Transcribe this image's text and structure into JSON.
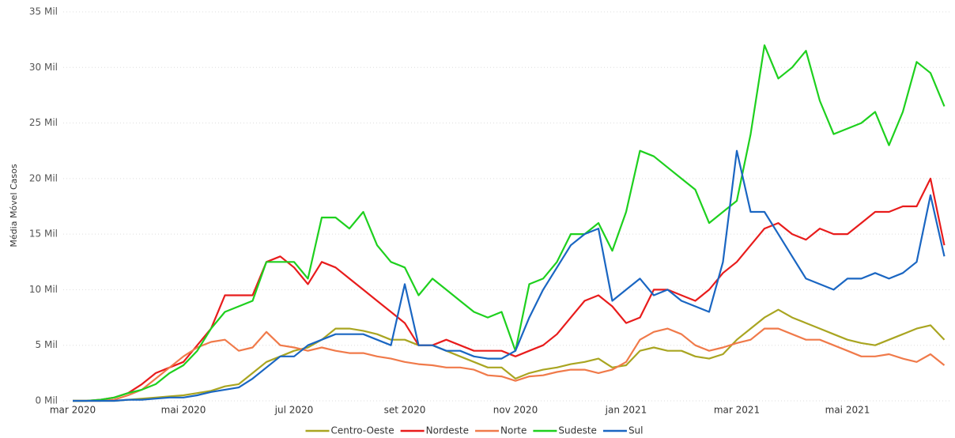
{
  "chart_data": {
    "type": "line",
    "y_label": "Média Móvel Casos",
    "categories": [
      "mar 2020",
      null,
      null,
      null,
      null,
      null,
      null,
      null,
      "mai 2020",
      null,
      null,
      null,
      null,
      null,
      null,
      null,
      "jul 2020",
      null,
      null,
      null,
      null,
      null,
      null,
      null,
      "set 2020",
      null,
      null,
      null,
      null,
      null,
      null,
      null,
      "nov 2020",
      null,
      null,
      null,
      null,
      null,
      null,
      null,
      "jan 2021",
      null,
      null,
      null,
      null,
      null,
      null,
      null,
      "mar 2021",
      null,
      null,
      null,
      null,
      null,
      null,
      null,
      "mai 2021",
      null,
      null,
      null,
      null,
      null,
      null,
      null
    ],
    "ylim": [
      0,
      35
    ],
    "yticks": [
      {
        "value": 0,
        "label": "0 Mil"
      },
      {
        "value": 5,
        "label": "5 Mil"
      },
      {
        "value": 10,
        "label": "10 Mil"
      },
      {
        "value": 15,
        "label": "15 Mil"
      },
      {
        "value": 20,
        "label": "20 Mil"
      },
      {
        "value": 25,
        "label": "25 Mil"
      },
      {
        "value": 30,
        "label": "30 Mil"
      },
      {
        "value": 35,
        "label": "35 Mil"
      }
    ],
    "grid": true,
    "legend": "bottom",
    "series": [
      {
        "name": "Centro-Oeste",
        "color": "#a9a521",
        "values": [
          0,
          0,
          0,
          0,
          0.1,
          0.2,
          0.3,
          0.4,
          0.5,
          0.7,
          0.9,
          1.3,
          1.5,
          2.5,
          3.5,
          4.0,
          4.5,
          4.8,
          5.5,
          6.5,
          6.5,
          6.3,
          6.0,
          5.5,
          5.5,
          5.0,
          5.0,
          4.5,
          4.0,
          3.5,
          3.0,
          3.0,
          2.0,
          2.5,
          2.8,
          3.0,
          3.3,
          3.5,
          3.8,
          3.0,
          3.2,
          4.5,
          4.8,
          4.5,
          4.5,
          4.0,
          3.8,
          4.2,
          5.5,
          6.5,
          7.5,
          8.2,
          7.5,
          7.0,
          6.5,
          6.0,
          5.5,
          5.2,
          5.0,
          5.5,
          6.0,
          6.5,
          6.8,
          5.5
        ]
      },
      {
        "name": "Nordeste",
        "color": "#e81c1c",
        "values": [
          0,
          0,
          0.1,
          0.3,
          0.7,
          1.5,
          2.5,
          3.0,
          3.5,
          5.0,
          6.5,
          9.5,
          9.5,
          9.5,
          12.5,
          13.0,
          12.0,
          10.5,
          12.5,
          12.0,
          11.0,
          10.0,
          9.0,
          8.0,
          7.0,
          5.0,
          5.0,
          5.5,
          5.0,
          4.5,
          4.5,
          4.5,
          4.0,
          4.5,
          5.0,
          6.0,
          7.5,
          9.0,
          9.5,
          8.5,
          7.0,
          7.5,
          10.0,
          10.0,
          9.5,
          9.0,
          10.0,
          11.5,
          12.5,
          14.0,
          15.5,
          16.0,
          15.0,
          14.5,
          15.5,
          15.0,
          15.0,
          16.0,
          17.0,
          17.0,
          17.5,
          17.5,
          20.0,
          14.0
        ]
      },
      {
        "name": "Norte",
        "color": "#f07a4a",
        "values": [
          0,
          0,
          0,
          0.1,
          0.5,
          1.0,
          2.0,
          3.0,
          4.0,
          4.8,
          5.3,
          5.5,
          4.5,
          4.8,
          6.2,
          5.0,
          4.8,
          4.5,
          4.8,
          4.5,
          4.3,
          4.3,
          4.0,
          3.8,
          3.5,
          3.3,
          3.2,
          3.0,
          3.0,
          2.8,
          2.3,
          2.2,
          1.8,
          2.2,
          2.3,
          2.6,
          2.8,
          2.8,
          2.5,
          2.8,
          3.5,
          5.5,
          6.2,
          6.5,
          6.0,
          5.0,
          4.5,
          4.8,
          5.2,
          5.5,
          6.5,
          6.5,
          6.0,
          5.5,
          5.5,
          5.0,
          4.5,
          4.0,
          4.0,
          4.2,
          3.8,
          3.5,
          4.2,
          3.2
        ]
      },
      {
        "name": "Sudeste",
        "color": "#1ed01e",
        "values": [
          0,
          0,
          0.1,
          0.3,
          0.7,
          1.0,
          1.5,
          2.5,
          3.2,
          4.5,
          6.5,
          8.0,
          8.5,
          9.0,
          12.5,
          12.5,
          12.5,
          11.0,
          16.5,
          16.5,
          15.5,
          17.0,
          14.0,
          12.5,
          12.0,
          9.5,
          11.0,
          10.0,
          9.0,
          8.0,
          7.5,
          8.0,
          4.5,
          10.5,
          11.0,
          12.5,
          15.0,
          15.0,
          16.0,
          13.5,
          17.0,
          22.5,
          22.0,
          21.0,
          20.0,
          19.0,
          16.0,
          17.0,
          18.0,
          24.0,
          32.0,
          29.0,
          30.0,
          31.5,
          27.0,
          24.0,
          24.5,
          25.0,
          26.0,
          23.0,
          26.0,
          30.5,
          29.5,
          26.5
        ]
      },
      {
        "name": "Sul",
        "color": "#1a66c2",
        "values": [
          0,
          0,
          0,
          0,
          0.1,
          0.1,
          0.2,
          0.3,
          0.3,
          0.5,
          0.8,
          1.0,
          1.2,
          2.0,
          3.0,
          4.0,
          4.0,
          5.0,
          5.5,
          6.0,
          6.0,
          6.0,
          5.5,
          5.0,
          10.5,
          5.0,
          5.0,
          4.5,
          4.5,
          4.0,
          3.8,
          3.8,
          4.5,
          7.5,
          10.0,
          12.0,
          14.0,
          15.0,
          15.5,
          9.0,
          10.0,
          11.0,
          9.5,
          10.0,
          9.0,
          8.5,
          8.0,
          12.5,
          22.5,
          17.0,
          17.0,
          15.0,
          13.0,
          11.0,
          10.5,
          10.0,
          11.0,
          11.0,
          11.5,
          11.0,
          11.5,
          12.5,
          18.5,
          13.0
        ]
      }
    ]
  }
}
